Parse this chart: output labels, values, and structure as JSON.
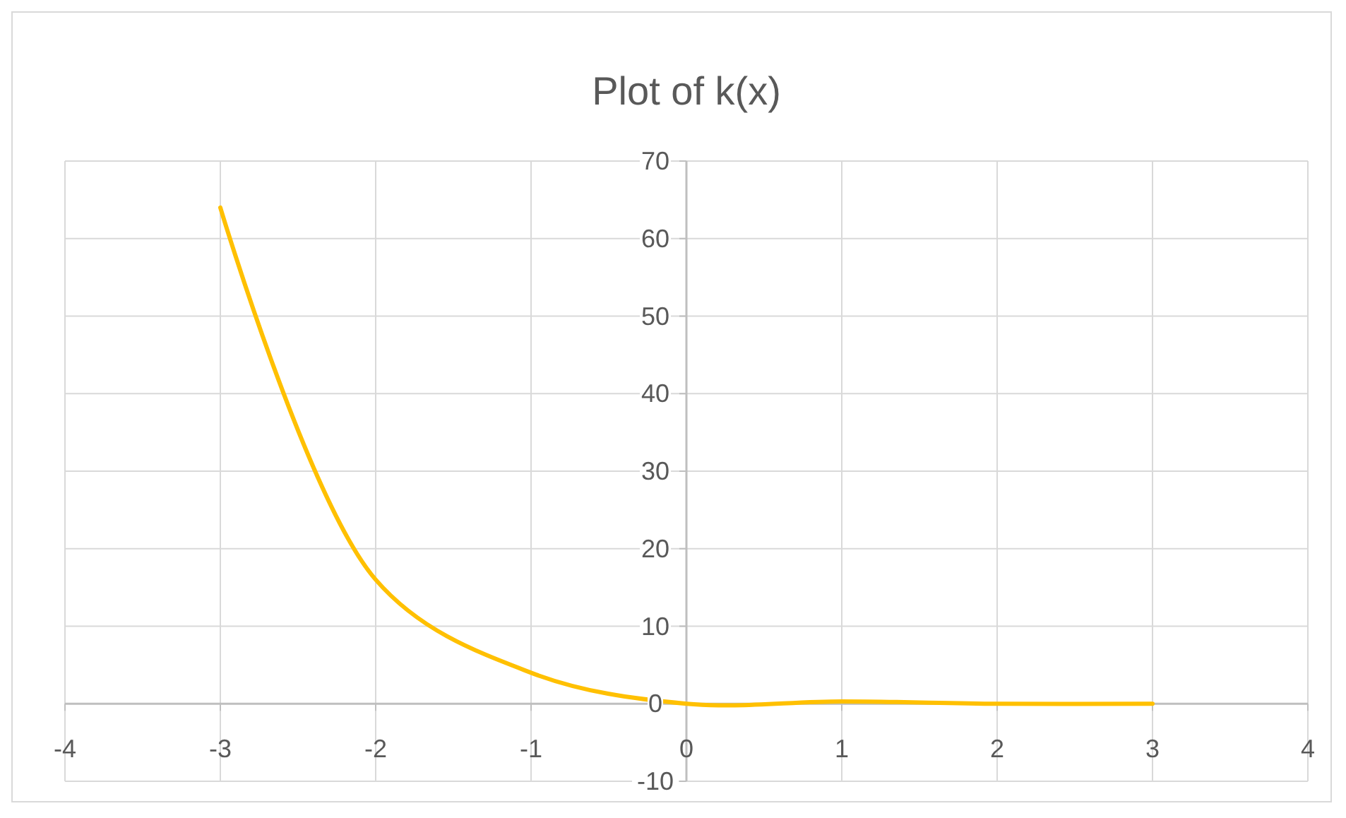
{
  "chart_data": {
    "type": "line",
    "title": "Plot of k(x)",
    "x": [
      -3,
      -2,
      -1,
      0,
      1,
      2,
      3
    ],
    "series": [
      {
        "color": "#ffc000",
        "values": [
          64,
          16,
          4,
          0,
          0.3,
          0,
          0
        ]
      }
    ],
    "xlim": [
      -4,
      4
    ],
    "xticks": [
      -4,
      -3,
      -2,
      -1,
      0,
      1,
      2,
      3,
      4
    ],
    "ylim": [
      -10,
      70
    ],
    "yticks": [
      -10,
      0,
      10,
      20,
      30,
      40,
      50,
      60,
      70
    ],
    "grid": true,
    "marker": "none",
    "line_style": "solid"
  }
}
